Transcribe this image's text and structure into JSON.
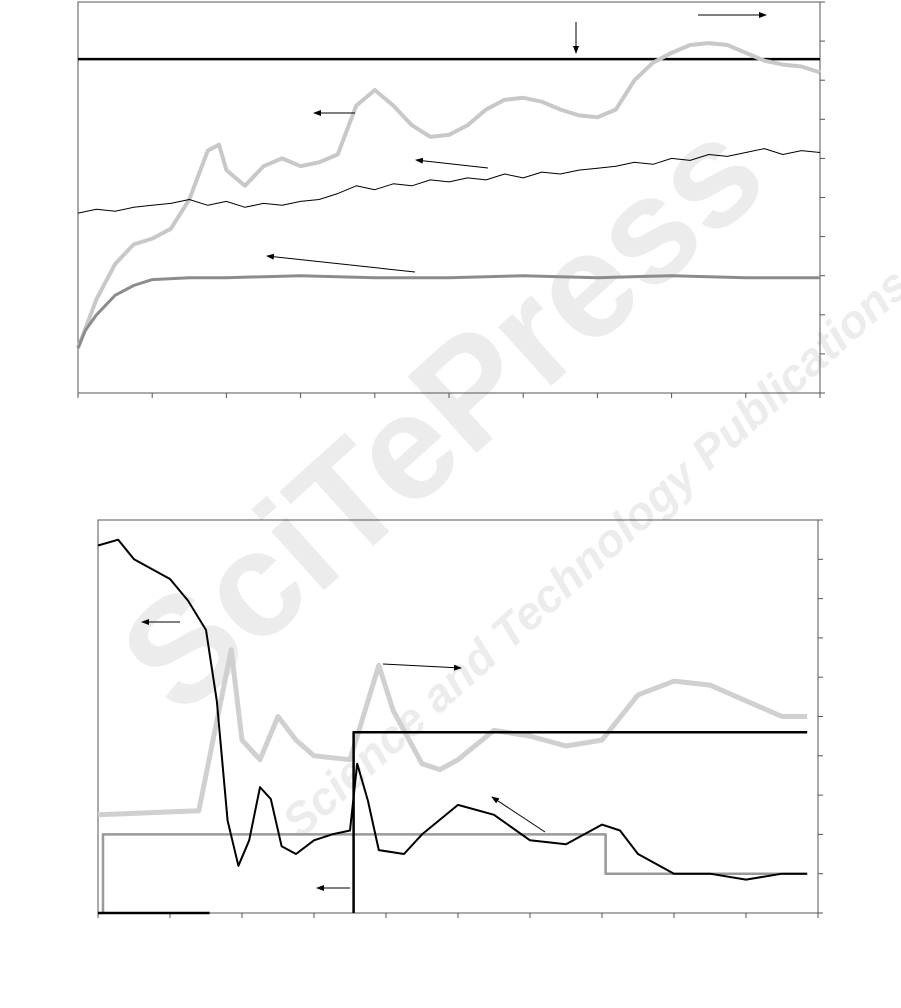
{
  "chart_data": [
    {
      "type": "line",
      "xlim": [
        0,
        10
      ],
      "ylim": [
        0,
        10
      ],
      "xticks": [
        0,
        1,
        2,
        3,
        4,
        5,
        6,
        7,
        8,
        9,
        10
      ],
      "yticks": [
        0,
        1,
        2,
        3,
        4,
        5,
        6,
        7,
        8,
        9,
        10
      ],
      "series": [
        {
          "color": "#000000",
          "x": [
            0,
            10
          ],
          "values": [
            8.54,
            8.54
          ]
        },
        {
          "color": "#c8c8c8",
          "x": [
            0,
            0.25,
            0.5,
            0.75,
            1,
            1.25,
            1.5,
            1.75,
            1.9,
            2,
            2.25,
            2.5,
            2.75,
            3,
            3.25,
            3.5,
            3.75,
            4,
            4.25,
            4.5,
            4.75,
            5,
            5.25,
            5.5,
            5.75,
            6,
            6.25,
            6.5,
            6.75,
            7,
            7.25,
            7.5,
            7.75,
            8,
            8.25,
            8.5,
            8.75,
            9,
            9.25,
            9.5,
            9.75,
            10
          ],
          "values": [
            1.15,
            2.4,
            3.3,
            3.8,
            3.95,
            4.2,
            4.95,
            6.2,
            6.35,
            5.7,
            5.3,
            5.8,
            6.0,
            5.8,
            5.9,
            6.1,
            7.35,
            7.75,
            7.35,
            6.85,
            6.55,
            6.6,
            6.85,
            7.25,
            7.5,
            7.55,
            7.45,
            7.25,
            7.1,
            7.05,
            7.25,
            8.0,
            8.45,
            8.7,
            8.9,
            8.95,
            8.9,
            8.7,
            8.5,
            8.4,
            8.35,
            8.2
          ]
        },
        {
          "color": "#000000",
          "x": [
            0,
            0.25,
            0.5,
            0.75,
            1,
            1.25,
            1.5,
            1.75,
            2,
            2.25,
            2.5,
            2.75,
            3,
            3.25,
            3.5,
            3.75,
            4,
            4.25,
            4.5,
            4.75,
            5,
            5.25,
            5.5,
            5.75,
            6,
            6.25,
            6.5,
            6.75,
            7,
            7.25,
            7.5,
            7.75,
            8,
            8.25,
            8.5,
            8.75,
            9,
            9.25,
            9.5,
            9.75,
            10
          ],
          "values": [
            4.6,
            4.7,
            4.65,
            4.75,
            4.8,
            4.85,
            4.95,
            4.8,
            4.9,
            4.75,
            4.85,
            4.8,
            4.9,
            4.95,
            5.1,
            5.3,
            5.2,
            5.35,
            5.3,
            5.45,
            5.4,
            5.5,
            5.45,
            5.6,
            5.5,
            5.65,
            5.6,
            5.7,
            5.75,
            5.8,
            5.9,
            5.85,
            6.0,
            5.95,
            6.1,
            6.05,
            6.15,
            6.25,
            6.1,
            6.2,
            6.15
          ]
        },
        {
          "color": "#8c8c8c",
          "x": [
            0,
            0.1,
            0.25,
            0.5,
            0.75,
            1,
            1.5,
            2,
            3,
            4,
            5,
            6,
            7,
            8,
            9,
            10
          ],
          "values": [
            1.15,
            1.6,
            2.0,
            2.5,
            2.75,
            2.9,
            2.95,
            2.95,
            3.0,
            2.95,
            2.95,
            3.0,
            2.95,
            3.0,
            2.95,
            2.95
          ]
        }
      ]
    },
    {
      "type": "line",
      "xlim": [
        0,
        10
      ],
      "ylim": [
        0,
        10
      ],
      "xticks": [
        0,
        1,
        2,
        3,
        4,
        5,
        6,
        7,
        8,
        9,
        10
      ],
      "yticks": [
        0,
        1,
        2,
        3,
        4,
        5,
        6,
        7,
        8,
        9,
        10
      ],
      "series": [
        {
          "color": "#d0d0d0",
          "x": [
            0,
            1.4,
            1.85,
            2,
            2.25,
            2.5,
            2.75,
            3,
            3.5,
            3.75,
            3.9,
            4.1,
            4.5,
            4.75,
            5,
            5.5,
            6,
            6.5,
            7,
            7.5,
            8,
            8.5,
            9,
            9.5,
            9.85
          ],
          "values": [
            2.5,
            2.6,
            6.7,
            4.4,
            3.9,
            5.0,
            4.4,
            4.0,
            3.9,
            5.4,
            6.3,
            5.15,
            3.8,
            3.65,
            3.9,
            4.65,
            4.5,
            4.25,
            4.4,
            5.55,
            5.9,
            5.8,
            5.4,
            5.0,
            5.0
          ]
        },
        {
          "color": "#999999",
          "x": [
            0.07,
            0.07,
            7.05,
            7.05,
            9.85
          ],
          "values": [
            0,
            2.0,
            2.0,
            1.0,
            1.0
          ]
        },
        {
          "color": "#000000",
          "x": [
            0,
            1.55,
            1.56,
            3.55,
            3.55,
            9.85
          ],
          "values": [
            0,
            0,
            null,
            0,
            4.6,
            4.6
          ]
        },
        {
          "color": "#000000",
          "x": [
            0,
            0.28,
            0.5,
            1,
            1.25,
            1.5,
            1.65,
            1.8,
            1.95,
            2.1,
            2.25,
            2.4,
            2.55,
            2.75,
            3,
            3.25,
            3.5,
            3.6,
            3.75,
            3.9,
            4.25,
            4.5,
            5,
            5.5,
            6,
            6.5,
            7,
            7.25,
            7.5,
            8,
            8.5,
            9,
            9.5,
            9.85
          ],
          "values": [
            9.35,
            9.5,
            9.0,
            8.5,
            7.95,
            7.2,
            5.4,
            2.35,
            1.2,
            1.85,
            3.2,
            2.9,
            1.7,
            1.5,
            1.85,
            2.0,
            2.1,
            3.8,
            2.85,
            1.6,
            1.5,
            2.0,
            2.75,
            2.5,
            1.85,
            1.75,
            2.25,
            2.1,
            1.5,
            1.0,
            1.0,
            0.85,
            1.0,
            1.0
          ]
        }
      ]
    }
  ],
  "watermark": {
    "logo": "SciTePress",
    "tagline": "Science and Technology Publications"
  }
}
